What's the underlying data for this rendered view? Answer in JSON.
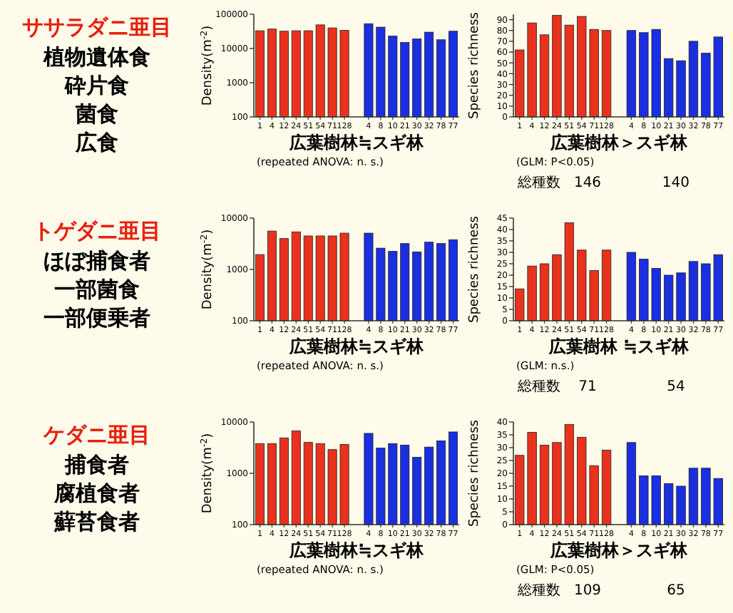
{
  "chart_data": [
    {
      "type": "other",
      "title": "ササラダニ亜目",
      "annotations": [
        "植物遺体食",
        "砕片食",
        "菌食",
        "広食"
      ]
    },
    {
      "type": "bar",
      "ylabel": "Density(m$^{-2}$)",
      "log": true,
      "ylim": [
        100,
        100000
      ],
      "yticks": [
        100,
        1000,
        10000,
        100000
      ],
      "categories": [
        "1",
        "4",
        "12",
        "24",
        "51",
        "54",
        "71",
        "128",
        null,
        "4",
        "8",
        "10",
        "21",
        "30",
        "32",
        "78",
        "77"
      ],
      "series": [
        {
          "color": "#e8321e",
          "values": [
            33000,
            37000,
            32000,
            33000,
            33000,
            49000,
            40000,
            34000,
            null,
            null,
            null,
            null,
            null,
            null,
            null,
            null,
            null
          ]
        },
        {
          "color": "#1a2fe0",
          "values": [
            null,
            null,
            null,
            null,
            null,
            null,
            null,
            null,
            null,
            53000,
            42000,
            23000,
            15000,
            19000,
            30000,
            18000,
            32000
          ]
        }
      ],
      "annotations": [
        "広葉樹林≒スギ林",
        "(repeated ANOVA: n. s.)"
      ]
    },
    {
      "type": "bar",
      "ylabel": "Species richness",
      "ylim": [
        0,
        95
      ],
      "yticks": [
        0,
        10,
        20,
        30,
        40,
        50,
        60,
        70,
        80,
        90
      ],
      "categories": [
        "1",
        "4",
        "12",
        "24",
        "51",
        "54",
        "71",
        "128",
        null,
        "4",
        "8",
        "10",
        "21",
        "30",
        "32",
        "78",
        "77"
      ],
      "series": [
        {
          "color": "#e8321e",
          "values": [
            62,
            87,
            76,
            94,
            85,
            93,
            81,
            80,
            null,
            null,
            null,
            null,
            null,
            null,
            null,
            null,
            null
          ]
        },
        {
          "color": "#1a2fe0",
          "values": [
            null,
            null,
            null,
            null,
            null,
            null,
            null,
            null,
            null,
            80,
            78,
            81,
            54,
            52,
            70,
            59,
            74
          ]
        }
      ],
      "annotations": [
        "広葉樹林＞スギ林",
        "(GLM: P<0.05)",
        "総種数",
        "146",
        "140"
      ]
    },
    {
      "type": "other",
      "title": "トゲダニ亜目",
      "annotations": [
        "ほぼ捕食者",
        "一部菌食",
        "一部便乗者"
      ]
    },
    {
      "type": "bar",
      "ylabel": "Density(m$^{-2}$)",
      "log": true,
      "ylim": [
        100,
        10000
      ],
      "yticks": [
        100,
        1000,
        10000
      ],
      "categories": [
        "1",
        "4",
        "12",
        "24",
        "51",
        "54",
        "71",
        "128",
        null,
        "4",
        "8",
        "10",
        "21",
        "30",
        "32",
        "78",
        "77"
      ],
      "series": [
        {
          "color": "#e8321e",
          "values": [
            1950,
            5600,
            4000,
            5400,
            4500,
            4500,
            4500,
            5100,
            null,
            null,
            null,
            null,
            null,
            null,
            null,
            null,
            null
          ]
        },
        {
          "color": "#1a2fe0",
          "values": [
            null,
            null,
            null,
            null,
            null,
            null,
            null,
            null,
            null,
            5100,
            2600,
            2250,
            3200,
            2200,
            3400,
            3200,
            3800
          ]
        }
      ],
      "annotations": [
        "広葉樹林≒スギ林",
        "(repeated ANOVA: n. s.)"
      ]
    },
    {
      "type": "bar",
      "ylabel": "Species richness",
      "ylim": [
        0,
        45
      ],
      "yticks": [
        0,
        5,
        10,
        15,
        20,
        25,
        30,
        35,
        40,
        45
      ],
      "categories": [
        "1",
        "4",
        "12",
        "24",
        "51",
        "54",
        "71",
        "128",
        null,
        "4",
        "8",
        "10",
        "21",
        "30",
        "32",
        "78",
        "77"
      ],
      "series": [
        {
          "color": "#e8321e",
          "values": [
            14,
            24,
            25,
            29,
            43,
            31,
            22,
            31,
            null,
            null,
            null,
            null,
            null,
            null,
            null,
            null,
            null
          ]
        },
        {
          "color": "#1a2fe0",
          "values": [
            null,
            null,
            null,
            null,
            null,
            null,
            null,
            null,
            null,
            30,
            27,
            23,
            20,
            21,
            26,
            25,
            29
          ]
        }
      ],
      "annotations": [
        "広葉樹林 ≒スギ林",
        "(GLM: n.s.)",
        "総種数",
        "71",
        "54"
      ]
    },
    {
      "type": "other",
      "title": "ケダニ亜目",
      "annotations": [
        "捕食者",
        "腐植食者",
        "蘚苔食者"
      ]
    },
    {
      "type": "bar",
      "ylabel": "Density(m$^{-2}$)",
      "log": true,
      "ylim": [
        100,
        10000
      ],
      "yticks": [
        100,
        1000,
        10000
      ],
      "categories": [
        "1",
        "4",
        "12",
        "24",
        "51",
        "54",
        "71",
        "128",
        null,
        "4",
        "8",
        "10",
        "21",
        "30",
        "32",
        "78",
        "77"
      ],
      "series": [
        {
          "color": "#e8321e",
          "values": [
            3800,
            3800,
            4900,
            6700,
            4000,
            3800,
            2900,
            3650,
            null,
            null,
            null,
            null,
            null,
            null,
            null,
            null,
            null
          ]
        },
        {
          "color": "#1a2fe0",
          "values": [
            null,
            null,
            null,
            null,
            null,
            null,
            null,
            null,
            null,
            6000,
            3100,
            3800,
            3550,
            2050,
            3250,
            4300,
            6400
          ]
        }
      ],
      "annotations": [
        "広葉樹林≒スギ林",
        "(repeated ANOVA: n. s.)"
      ]
    },
    {
      "type": "bar",
      "ylabel": "Species richness",
      "ylim": [
        0,
        40
      ],
      "yticks": [
        0,
        5,
        10,
        15,
        20,
        25,
        30,
        35,
        40
      ],
      "categories": [
        "1",
        "4",
        "12",
        "24",
        "51",
        "54",
        "71",
        "128",
        null,
        "4",
        "8",
        "10",
        "21",
        "30",
        "32",
        "78",
        "77"
      ],
      "series": [
        {
          "color": "#e8321e",
          "values": [
            27,
            36,
            31,
            32,
            39,
            34,
            23,
            29,
            null,
            null,
            null,
            null,
            null,
            null,
            null,
            null,
            null
          ]
        },
        {
          "color": "#1a2fe0",
          "values": [
            null,
            null,
            null,
            null,
            null,
            null,
            null,
            null,
            null,
            32,
            19,
            19,
            16,
            15,
            22,
            22,
            18
          ]
        }
      ],
      "annotations": [
        "広葉樹林＞スギ林",
        "(GLM: P<0.05)",
        "総種数",
        "109",
        "65"
      ]
    }
  ]
}
